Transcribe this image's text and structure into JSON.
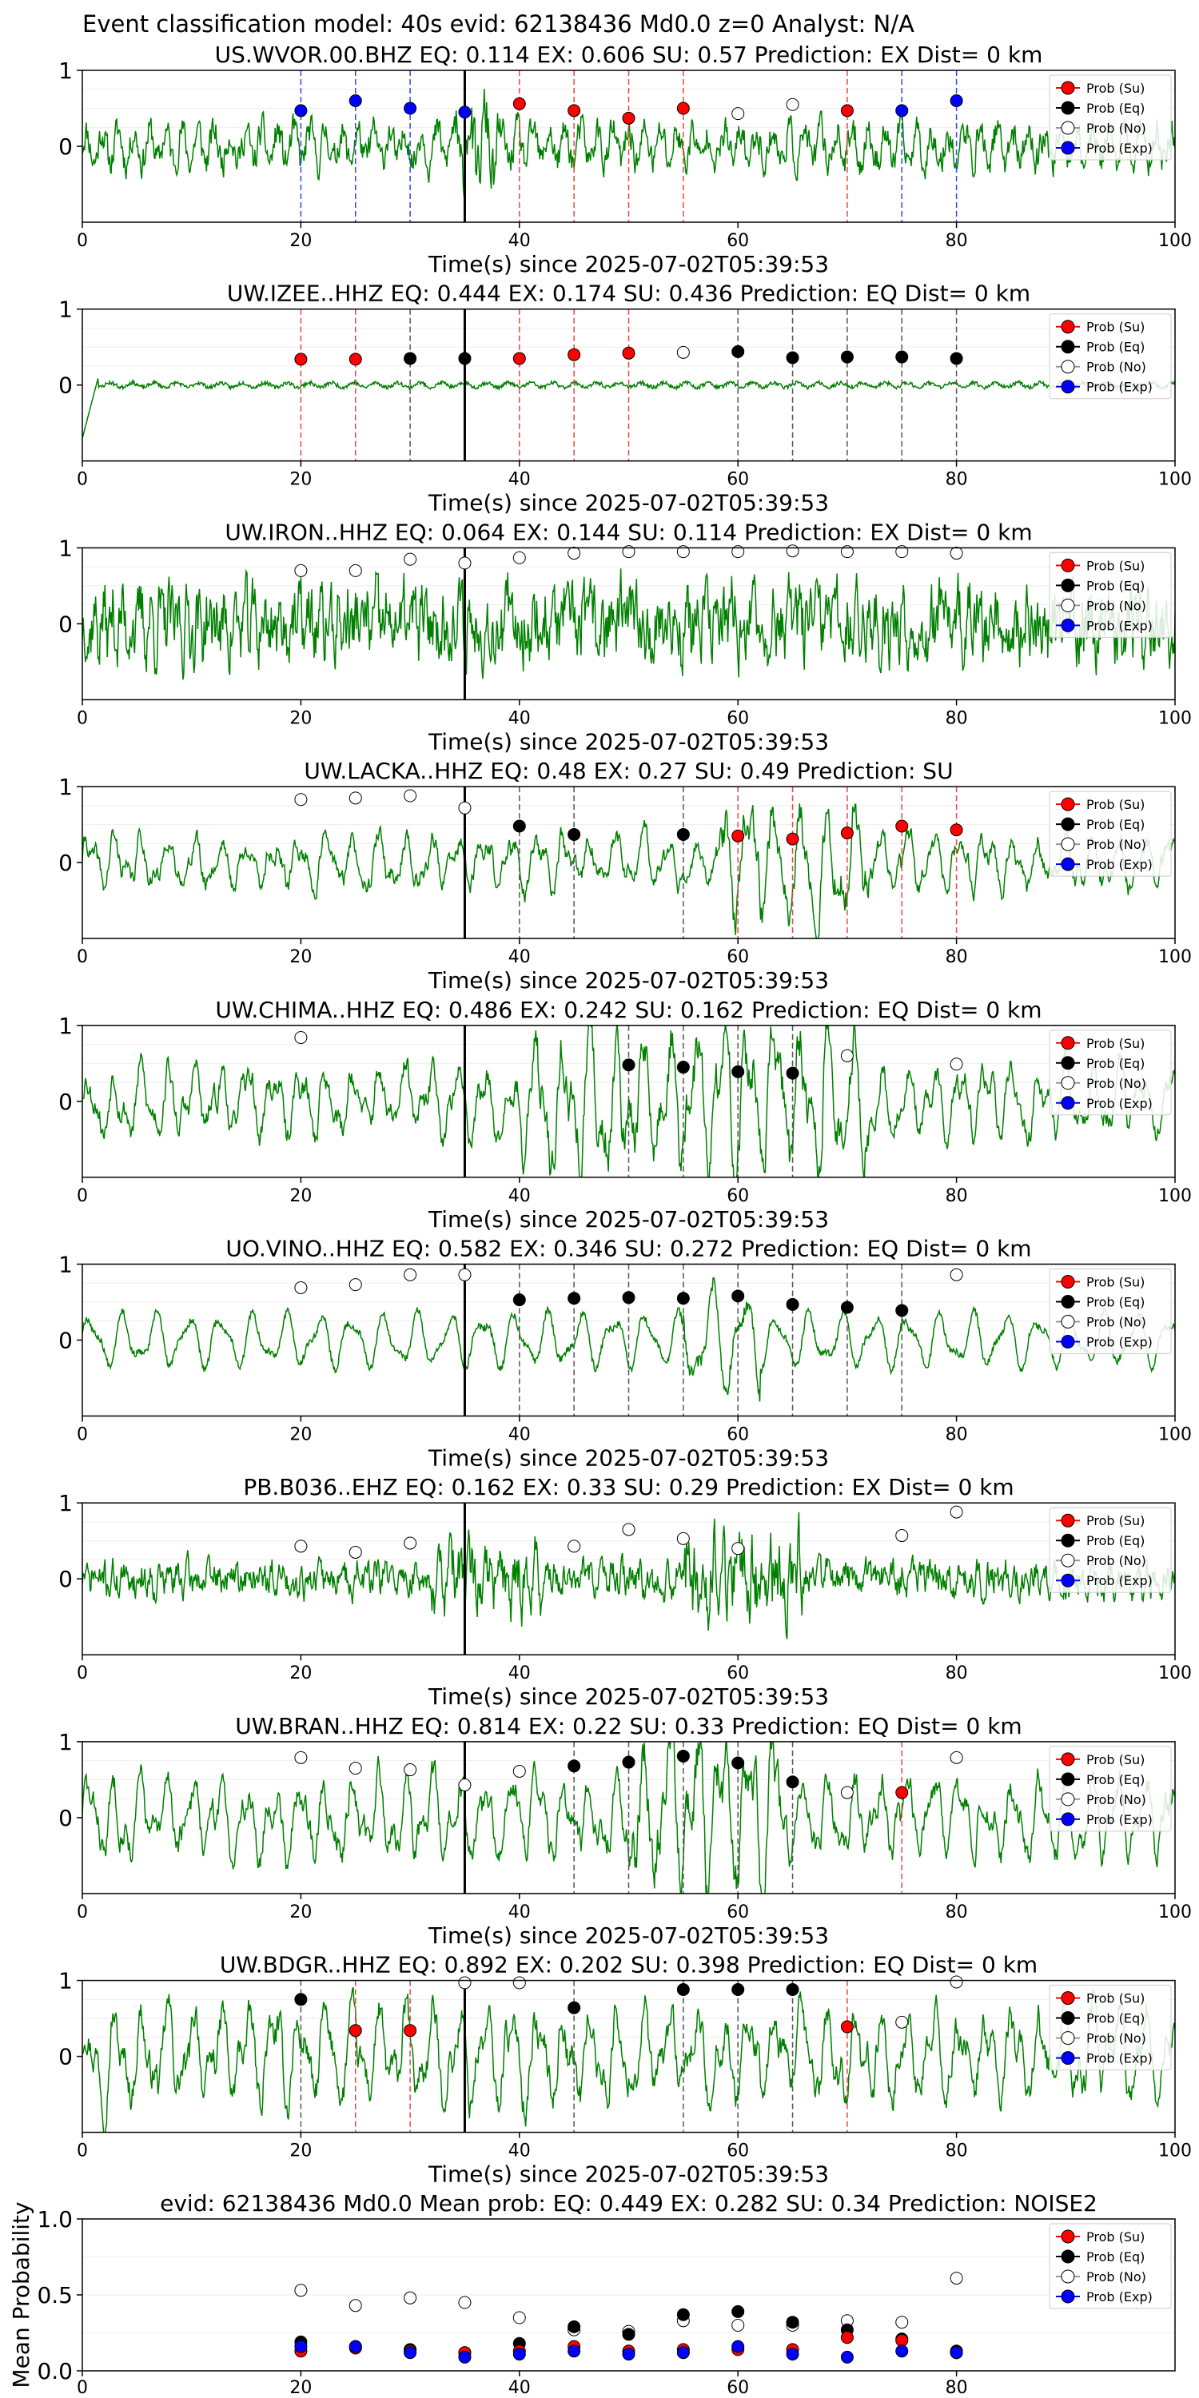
{
  "figure": {
    "suptitle": "Event classification model: 40s evid: 62138436 Md0.0 z=0 Analyst: N/A",
    "xlabel": "Time(s) since 2025-07-02T05:39:53",
    "x_ticks": [
      "0",
      "20",
      "40",
      "60",
      "80",
      "100"
    ],
    "y_ticks": [
      "0",
      "1"
    ],
    "colors": {
      "waveform": "#008000",
      "su": "#ff0000",
      "eq": "#000000",
      "no": "#ffffff",
      "exp": "#0000ff",
      "vline": "#000000"
    },
    "legend": [
      "Prob (Su)",
      "Prob (Eq)",
      "Prob (No)",
      "Prob (Exp)"
    ]
  },
  "chart_data": [
    {
      "type": "line",
      "title": "US.WVOR.00.BHZ   EQ: 0.114  EX: 0.606  SU: 0.57   Prediction: EX    Dist= 0 km",
      "xlim": [
        0,
        100
      ],
      "ylim": [
        -1,
        1
      ],
      "marker_time": 35,
      "waveform": {
        "amplitude": 0.45,
        "style": "mixed",
        "burst_start": 34,
        "burst_end": 38,
        "seed": 11
      },
      "probability_points": [
        {
          "x": 20,
          "y": 0.47,
          "class": "exp"
        },
        {
          "x": 25,
          "y": 0.6,
          "class": "exp"
        },
        {
          "x": 30,
          "y": 0.5,
          "class": "exp"
        },
        {
          "x": 35,
          "y": 0.45,
          "class": "exp"
        },
        {
          "x": 40,
          "y": 0.56,
          "class": "su"
        },
        {
          "x": 45,
          "y": 0.47,
          "class": "su"
        },
        {
          "x": 50,
          "y": 0.37,
          "class": "su"
        },
        {
          "x": 55,
          "y": 0.5,
          "class": "su"
        },
        {
          "x": 60,
          "y": 0.43,
          "class": "no"
        },
        {
          "x": 65,
          "y": 0.55,
          "class": "no"
        },
        {
          "x": 70,
          "y": 0.47,
          "class": "su"
        },
        {
          "x": 75,
          "y": 0.47,
          "class": "exp"
        },
        {
          "x": 80,
          "y": 0.6,
          "class": "exp"
        }
      ]
    },
    {
      "type": "line",
      "title": "UW.IZEE..HHZ   EQ: 0.444  EX: 0.174  SU: 0.436   Prediction: EQ    Dist= 0 km",
      "xlim": [
        0,
        100
      ],
      "ylim": [
        -1,
        1
      ],
      "marker_time": 35,
      "waveform": {
        "amplitude": 0.05,
        "style": "quiet",
        "seed": 23
      },
      "probability_points": [
        {
          "x": 20,
          "y": 0.34,
          "class": "su"
        },
        {
          "x": 25,
          "y": 0.34,
          "class": "su"
        },
        {
          "x": 30,
          "y": 0.35,
          "class": "eq"
        },
        {
          "x": 35,
          "y": 0.35,
          "class": "eq"
        },
        {
          "x": 40,
          "y": 0.35,
          "class": "su"
        },
        {
          "x": 45,
          "y": 0.4,
          "class": "su"
        },
        {
          "x": 50,
          "y": 0.42,
          "class": "su"
        },
        {
          "x": 55,
          "y": 0.43,
          "class": "no"
        },
        {
          "x": 60,
          "y": 0.44,
          "class": "eq"
        },
        {
          "x": 65,
          "y": 0.36,
          "class": "eq"
        },
        {
          "x": 70,
          "y": 0.37,
          "class": "eq"
        },
        {
          "x": 75,
          "y": 0.37,
          "class": "eq"
        },
        {
          "x": 80,
          "y": 0.35,
          "class": "eq"
        }
      ]
    },
    {
      "type": "line",
      "title": "UW.IRON..HHZ   EQ: 0.064  EX: 0.144  SU: 0.114   Prediction: EX    Dist= 0 km",
      "xlim": [
        0,
        100
      ],
      "ylim": [
        -1,
        1
      ],
      "marker_time": 35,
      "waveform": {
        "amplitude": 0.55,
        "style": "noisy",
        "seed": 37
      },
      "probability_points": [
        {
          "x": 20,
          "y": 0.7,
          "class": "no"
        },
        {
          "x": 25,
          "y": 0.7,
          "class": "no"
        },
        {
          "x": 30,
          "y": 0.85,
          "class": "no"
        },
        {
          "x": 35,
          "y": 0.8,
          "class": "no"
        },
        {
          "x": 40,
          "y": 0.87,
          "class": "no"
        },
        {
          "x": 45,
          "y": 0.93,
          "class": "no"
        },
        {
          "x": 50,
          "y": 0.95,
          "class": "no"
        },
        {
          "x": 55,
          "y": 0.95,
          "class": "no"
        },
        {
          "x": 60,
          "y": 0.95,
          "class": "no"
        },
        {
          "x": 65,
          "y": 0.96,
          "class": "no"
        },
        {
          "x": 70,
          "y": 0.95,
          "class": "no"
        },
        {
          "x": 75,
          "y": 0.95,
          "class": "no"
        },
        {
          "x": 80,
          "y": 0.93,
          "class": "no"
        }
      ]
    },
    {
      "type": "line",
      "title": "UW.LACKA..HHZ   EQ: 0.48  EX: 0.27  SU: 0.49   Prediction: SU",
      "xlim": [
        0,
        100
      ],
      "ylim": [
        -1,
        1
      ],
      "marker_time": 35,
      "waveform": {
        "amplitude": 0.35,
        "style": "wavy",
        "burst_start": 58,
        "burst_end": 72,
        "seed": 41
      },
      "probability_points": [
        {
          "x": 20,
          "y": 0.83,
          "class": "no"
        },
        {
          "x": 25,
          "y": 0.85,
          "class": "no"
        },
        {
          "x": 30,
          "y": 0.88,
          "class": "no"
        },
        {
          "x": 35,
          "y": 0.72,
          "class": "no"
        },
        {
          "x": 40,
          "y": 0.48,
          "class": "eq"
        },
        {
          "x": 45,
          "y": 0.37,
          "class": "eq"
        },
        {
          "x": 55,
          "y": 0.37,
          "class": "eq"
        },
        {
          "x": 60,
          "y": 0.35,
          "class": "su"
        },
        {
          "x": 65,
          "y": 0.31,
          "class": "su"
        },
        {
          "x": 70,
          "y": 0.39,
          "class": "su"
        },
        {
          "x": 75,
          "y": 0.48,
          "class": "su"
        },
        {
          "x": 80,
          "y": 0.43,
          "class": "su"
        }
      ]
    },
    {
      "type": "line",
      "title": "UW.CHIMA..HHZ   EQ: 0.486  EX: 0.242  SU: 0.162   Prediction: EQ    Dist= 0 km",
      "xlim": [
        0,
        100
      ],
      "ylim": [
        -1,
        1
      ],
      "marker_time": 35,
      "waveform": {
        "amplitude": 0.45,
        "style": "wavy",
        "burst_start": 40,
        "burst_end": 72,
        "seed": 53
      },
      "probability_points": [
        {
          "x": 20,
          "y": 0.84,
          "class": "no"
        },
        {
          "x": 50,
          "y": 0.48,
          "class": "eq"
        },
        {
          "x": 55,
          "y": 0.45,
          "class": "eq"
        },
        {
          "x": 60,
          "y": 0.39,
          "class": "eq"
        },
        {
          "x": 65,
          "y": 0.37,
          "class": "eq"
        },
        {
          "x": 70,
          "y": 0.6,
          "class": "no"
        },
        {
          "x": 80,
          "y": 0.49,
          "class": "no"
        }
      ]
    },
    {
      "type": "line",
      "title": "UO.VINO..HHZ   EQ: 0.582  EX: 0.346  SU: 0.272   Prediction: EQ    Dist= 0 km",
      "xlim": [
        0,
        100
      ],
      "ylim": [
        -1,
        1
      ],
      "marker_time": 35,
      "waveform": {
        "amplitude": 0.35,
        "style": "smooth",
        "burst_start": 55,
        "burst_end": 62,
        "seed": 67
      },
      "probability_points": [
        {
          "x": 20,
          "y": 0.69,
          "class": "no"
        },
        {
          "x": 25,
          "y": 0.73,
          "class": "no"
        },
        {
          "x": 30,
          "y": 0.86,
          "class": "no"
        },
        {
          "x": 35,
          "y": 0.86,
          "class": "no"
        },
        {
          "x": 40,
          "y": 0.53,
          "class": "eq"
        },
        {
          "x": 45,
          "y": 0.55,
          "class": "eq"
        },
        {
          "x": 50,
          "y": 0.56,
          "class": "eq"
        },
        {
          "x": 55,
          "y": 0.55,
          "class": "eq"
        },
        {
          "x": 60,
          "y": 0.58,
          "class": "eq"
        },
        {
          "x": 65,
          "y": 0.47,
          "class": "eq"
        },
        {
          "x": 70,
          "y": 0.43,
          "class": "eq"
        },
        {
          "x": 75,
          "y": 0.39,
          "class": "eq"
        },
        {
          "x": 80,
          "y": 0.86,
          "class": "no"
        }
      ]
    },
    {
      "type": "line",
      "title": "PB.B036..EHZ   EQ: 0.162  EX: 0.33  SU: 0.29   Prediction: EX    Dist= 0 km",
      "xlim": [
        0,
        100
      ],
      "ylim": [
        -1,
        1
      ],
      "marker_time": 35,
      "waveform": {
        "amplitude": 0.25,
        "style": "dense",
        "burst_start": 32,
        "burst_end": 42,
        "burst2_start": 55,
        "burst2_end": 66,
        "seed": 71
      },
      "probability_points": [
        {
          "x": 20,
          "y": 0.43,
          "class": "no"
        },
        {
          "x": 25,
          "y": 0.35,
          "class": "no"
        },
        {
          "x": 30,
          "y": 0.47,
          "class": "no"
        },
        {
          "x": 45,
          "y": 0.43,
          "class": "no"
        },
        {
          "x": 50,
          "y": 0.65,
          "class": "no"
        },
        {
          "x": 55,
          "y": 0.53,
          "class": "no"
        },
        {
          "x": 60,
          "y": 0.4,
          "class": "no"
        },
        {
          "x": 75,
          "y": 0.57,
          "class": "no"
        },
        {
          "x": 80,
          "y": 0.88,
          "class": "no"
        }
      ]
    },
    {
      "type": "line",
      "title": "UW.BRAN..HHZ   EQ: 0.814  EX: 0.22  SU: 0.33   Prediction: EQ    Dist= 0 km",
      "xlim": [
        0,
        100
      ],
      "ylim": [
        -1,
        1
      ],
      "marker_time": 35,
      "waveform": {
        "amplitude": 0.5,
        "style": "wavy",
        "burst_start": 50,
        "burst_end": 64,
        "seed": 83
      },
      "probability_points": [
        {
          "x": 20,
          "y": 0.79,
          "class": "no"
        },
        {
          "x": 25,
          "y": 0.65,
          "class": "no"
        },
        {
          "x": 30,
          "y": 0.63,
          "class": "no"
        },
        {
          "x": 35,
          "y": 0.43,
          "class": "no"
        },
        {
          "x": 40,
          "y": 0.61,
          "class": "no"
        },
        {
          "x": 45,
          "y": 0.68,
          "class": "eq"
        },
        {
          "x": 50,
          "y": 0.73,
          "class": "eq"
        },
        {
          "x": 55,
          "y": 0.81,
          "class": "eq"
        },
        {
          "x": 60,
          "y": 0.72,
          "class": "eq"
        },
        {
          "x": 65,
          "y": 0.47,
          "class": "eq"
        },
        {
          "x": 70,
          "y": 0.33,
          "class": "no"
        },
        {
          "x": 75,
          "y": 0.33,
          "class": "su"
        },
        {
          "x": 80,
          "y": 0.79,
          "class": "no"
        }
      ]
    },
    {
      "type": "line",
      "title": "UW.BDGR..HHZ   EQ: 0.892  EX: 0.202  SU: 0.398   Prediction: EQ    Dist= 0 km",
      "xlim": [
        0,
        100
      ],
      "ylim": [
        -1,
        1
      ],
      "marker_time": 35,
      "waveform": {
        "amplitude": 0.6,
        "style": "wavy",
        "seed": 97
      },
      "probability_points": [
        {
          "x": 20,
          "y": 0.75,
          "class": "eq"
        },
        {
          "x": 25,
          "y": 0.34,
          "class": "su"
        },
        {
          "x": 30,
          "y": 0.34,
          "class": "su"
        },
        {
          "x": 35,
          "y": 0.97,
          "class": "no"
        },
        {
          "x": 40,
          "y": 0.97,
          "class": "no"
        },
        {
          "x": 45,
          "y": 0.64,
          "class": "eq"
        },
        {
          "x": 55,
          "y": 0.88,
          "class": "eq"
        },
        {
          "x": 60,
          "y": 0.88,
          "class": "eq"
        },
        {
          "x": 65,
          "y": 0.88,
          "class": "eq"
        },
        {
          "x": 70,
          "y": 0.39,
          "class": "su"
        },
        {
          "x": 75,
          "y": 0.45,
          "class": "no"
        },
        {
          "x": 80,
          "y": 0.98,
          "class": "no"
        }
      ]
    },
    {
      "type": "scatter",
      "title": "evid: 62138436  Md0.0   Mean prob:   EQ: 0.449  EX: 0.282  SU: 0.34   Prediction: NOISE2",
      "ylabel": "Mean Probability",
      "xlim": [
        0,
        100
      ],
      "ylim": [
        0,
        1
      ],
      "y_ticks": [
        "0.0",
        "0.5",
        "1.0"
      ],
      "x_ticks": [
        "0",
        "20",
        "40",
        "60",
        "80"
      ],
      "series": [
        {
          "name": "Prob (No)",
          "class": "no",
          "x": [
            20,
            25,
            30,
            35,
            40,
            45,
            50,
            55,
            60,
            65,
            70,
            75,
            80
          ],
          "y": [
            0.53,
            0.43,
            0.48,
            0.45,
            0.35,
            0.27,
            0.26,
            0.33,
            0.3,
            0.3,
            0.33,
            0.32,
            0.61
          ]
        },
        {
          "name": "Prob (Eq)",
          "class": "eq",
          "x": [
            20,
            25,
            30,
            35,
            40,
            45,
            50,
            55,
            60,
            65,
            70,
            75,
            80
          ],
          "y": [
            0.19,
            0.16,
            0.14,
            0.12,
            0.18,
            0.29,
            0.24,
            0.37,
            0.39,
            0.32,
            0.27,
            0.21,
            0.13
          ]
        },
        {
          "name": "Prob (Su)",
          "class": "su",
          "x": [
            20,
            25,
            30,
            35,
            40,
            45,
            50,
            55,
            60,
            65,
            70,
            75,
            80
          ],
          "y": [
            0.13,
            0.15,
            0.13,
            0.12,
            0.13,
            0.16,
            0.13,
            0.14,
            0.14,
            0.14,
            0.22,
            0.2,
            0.12
          ]
        },
        {
          "name": "Prob (Exp)",
          "class": "exp",
          "x": [
            20,
            25,
            30,
            35,
            40,
            45,
            50,
            55,
            60,
            65,
            70,
            75,
            80
          ],
          "y": [
            0.16,
            0.16,
            0.12,
            0.09,
            0.11,
            0.13,
            0.11,
            0.12,
            0.16,
            0.11,
            0.09,
            0.13,
            0.12
          ]
        }
      ]
    }
  ]
}
